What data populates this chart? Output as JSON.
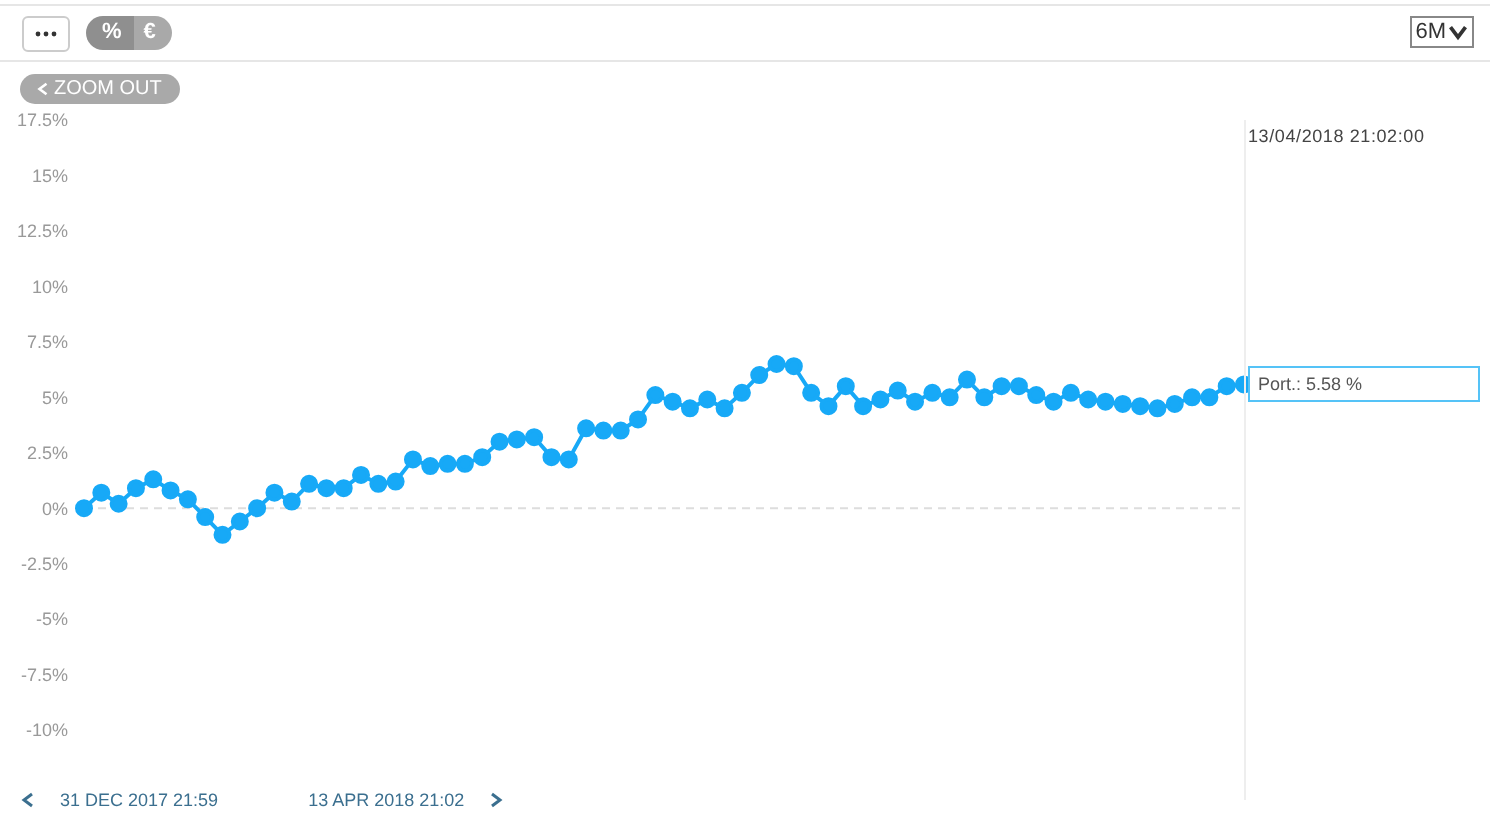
{
  "chart_data": {
    "type": "line",
    "categories": [
      null,
      null,
      null,
      null,
      null,
      null,
      null,
      null,
      null,
      null,
      null,
      null,
      null,
      null,
      null,
      null,
      null,
      null,
      null,
      null,
      null,
      null,
      null,
      null,
      null,
      null,
      null,
      null,
      null,
      null,
      null,
      null,
      null,
      null,
      null,
      null,
      null,
      null,
      null,
      null,
      null,
      null,
      null,
      null,
      null,
      null,
      null,
      null,
      null,
      null,
      null,
      null,
      null,
      null,
      null,
      null,
      null,
      null,
      null,
      null,
      null,
      null,
      null,
      null,
      null,
      null,
      null,
      null
    ],
    "series": [
      {
        "color": "#17a9f7",
        "values": [
          0.0,
          0.7,
          0.2,
          0.9,
          1.3,
          0.8,
          0.4,
          -0.4,
          -1.2,
          -0.6,
          0.0,
          0.7,
          0.3,
          1.1,
          0.9,
          0.9,
          1.5,
          1.1,
          1.2,
          2.2,
          1.9,
          2.0,
          2.0,
          2.3,
          3.0,
          3.1,
          3.2,
          2.3,
          2.2,
          3.6,
          3.5,
          3.5,
          4.0,
          5.1,
          4.8,
          4.5,
          4.9,
          4.5,
          5.2,
          6.0,
          6.5,
          6.4,
          5.2,
          4.6,
          5.5,
          4.6,
          4.9,
          5.3,
          4.8,
          5.2,
          5.0,
          5.8,
          5.0,
          5.5,
          5.5,
          5.1,
          4.8,
          5.2,
          4.9,
          4.8,
          4.7,
          4.6,
          4.5,
          4.7,
          5.0,
          5.0,
          5.5,
          5.58
        ]
      }
    ],
    "ylim": [
      -10,
      17.5
    ],
    "yticks": [
      {
        "value": -10,
        "label": "-10%"
      },
      {
        "value": -7.5,
        "label": "-7.5%"
      },
      {
        "value": -5,
        "label": "-5%"
      },
      {
        "value": -2.5,
        "label": "-2.5%"
      },
      {
        "value": 0,
        "label": "0%"
      },
      {
        "value": 2.5,
        "label": "2.5%"
      },
      {
        "value": 5,
        "label": "5%"
      },
      {
        "value": 7.5,
        "label": "7.5%"
      },
      {
        "value": 10,
        "label": "10%"
      },
      {
        "value": 12.5,
        "label": "12.5%"
      },
      {
        "value": 15,
        "label": "15%"
      },
      {
        "value": 17.5,
        "label": "17.5%"
      }
    ],
    "tick_labels": "y",
    "marker": "circle",
    "line_style": "solid",
    "ref_lines": [
      {
        "axis": "y",
        "value": 0,
        "color": "#dddddd",
        "line_style": "dashed"
      }
    ],
    "annotations": [
      "%",
      "€",
      "6M",
      "ZOOM OUT",
      "31 DEC 2017 21:59",
      "13 APR 2018 21:02",
      "13/04/2018 21:02:00",
      "Port.: 5.58 %"
    ]
  }
}
